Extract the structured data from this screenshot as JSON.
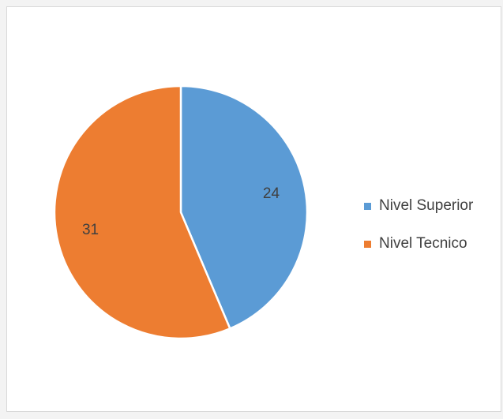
{
  "chart_data": {
    "type": "pie",
    "categories": [
      "Nivel Superior",
      "Nivel Tecnico"
    ],
    "values": [
      24,
      31
    ],
    "colors": [
      "#5b9bd5",
      "#ed7d31"
    ],
    "data_labels": [
      "24",
      "31"
    ],
    "start_angle": "12 o'clock",
    "direction": "clockwise",
    "legend_position": "right"
  },
  "legend": {
    "items": [
      {
        "label": "Nivel Superior",
        "color": "#5b9bd5"
      },
      {
        "label": "Nivel Tecnico",
        "color": "#ed7d31"
      }
    ]
  }
}
